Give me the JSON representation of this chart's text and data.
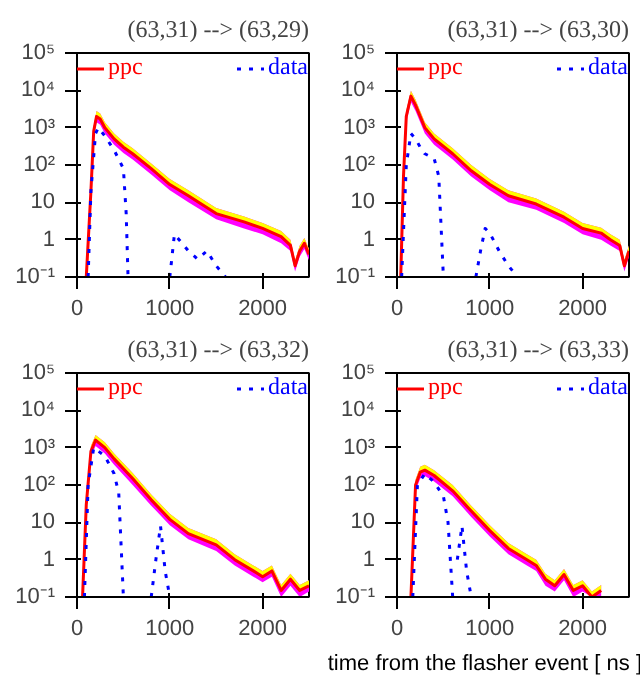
{
  "chart_data": [
    {
      "type": "line",
      "title": "(63,31) --> (63,29)",
      "xlim": [
        0,
        2500
      ],
      "ylim": [
        0.1,
        100000
      ],
      "log": "y",
      "legend": "top",
      "grid": false,
      "xticks": [
        0,
        1000,
        2000
      ],
      "yticks": [
        {
          "value": 0.1,
          "label": "10⁻¹"
        },
        1,
        10,
        {
          "value": 100,
          "label": "10²"
        },
        {
          "value": 1000,
          "label": "10³"
        },
        {
          "value": 10000,
          "label": "10⁴"
        },
        {
          "value": 100000,
          "label": "10⁵"
        }
      ],
      "series": [
        {
          "name": "ppc",
          "color": "#ff0000",
          "line_style": "solid",
          "x": [
            100,
            150,
            180,
            210,
            250,
            300,
            400,
            500,
            600,
            800,
            1000,
            1200,
            1500,
            1800,
            2000,
            2200,
            2300,
            2350,
            2400,
            2450,
            2500
          ],
          "values": [
            0.1,
            20,
            800,
            2000,
            1700,
            1000,
            500,
            300,
            200,
            80,
            30,
            15,
            5,
            3,
            2,
            1.2,
            0.7,
            0.2,
            0.5,
            0.8,
            0.4
          ],
          "lower": [
            0.1,
            14,
            560,
            1400,
            1200,
            700,
            350,
            210,
            140,
            56,
            21,
            10,
            3.5,
            2,
            1.4,
            0.8,
            0.5,
            0.14,
            0.35,
            0.56,
            0.28
          ],
          "upper": [
            0.14,
            28,
            1100,
            2800,
            2400,
            1400,
            700,
            420,
            280,
            110,
            42,
            21,
            7,
            4.2,
            2.8,
            1.7,
            1,
            0.28,
            0.7,
            1.1,
            0.56
          ]
        },
        {
          "name": "data",
          "color": "#0000ff",
          "line_style": "dotted",
          "x": [
            120,
            150,
            200,
            230,
            300,
            400,
            500,
            530,
            550,
            null,
            1000,
            1050,
            1100,
            1200,
            1300,
            1400,
            1500,
            1600
          ],
          "values": [
            0.1,
            20,
            700,
            1000,
            600,
            250,
            80,
            5,
            0.1,
            null,
            0.1,
            1.4,
            1,
            0.5,
            0.3,
            0.5,
            0.2,
            0.1
          ]
        }
      ]
    },
    {
      "type": "line",
      "title": "(63,31) --> (63,30)",
      "xlim": [
        0,
        2500
      ],
      "ylim": [
        0.1,
        100000
      ],
      "log": "y",
      "legend": "top",
      "grid": false,
      "xticks": [
        0,
        1000,
        2000
      ],
      "yticks": [
        {
          "value": 0.1,
          "label": "10⁻¹"
        },
        1,
        10,
        {
          "value": 100,
          "label": "10²"
        },
        {
          "value": 1000,
          "label": "10³"
        },
        {
          "value": 10000,
          "label": "10⁴"
        },
        {
          "value": 100000,
          "label": "10⁵"
        }
      ],
      "series": [
        {
          "name": "ppc",
          "color": "#ff0000",
          "line_style": "solid",
          "x": [
            40,
            70,
            100,
            150,
            200,
            300,
            400,
            600,
            800,
            1000,
            1200,
            1500,
            1800,
            2000,
            2200,
            2300,
            2400,
            2450,
            2500
          ],
          "values": [
            0.1,
            50,
            2000,
            7000,
            4000,
            1000,
            500,
            200,
            70,
            30,
            15,
            9,
            4,
            2,
            1.5,
            1,
            0.7,
            0.2,
            0.5
          ],
          "lower": [
            0.1,
            35,
            1400,
            4900,
            2800,
            700,
            350,
            140,
            49,
            21,
            10,
            6.3,
            2.8,
            1.4,
            1,
            0.7,
            0.5,
            0.14,
            0.35
          ],
          "upper": [
            0.14,
            70,
            2800,
            9800,
            5600,
            1400,
            700,
            280,
            100,
            42,
            21,
            12.6,
            5.6,
            2.8,
            2.1,
            1.4,
            1,
            0.28,
            0.7
          ]
        },
        {
          "name": "data",
          "color": "#0000ff",
          "line_style": "dotted",
          "x": [
            50,
            100,
            150,
            200,
            250,
            300,
            400,
            450,
            500,
            null,
            850,
            900,
            950,
            1000,
            1100,
            1200,
            1300
          ],
          "values": [
            0.1,
            100,
            700,
            500,
            300,
            200,
            150,
            50,
            0.1,
            null,
            0.1,
            0.5,
            2,
            1.5,
            0.5,
            0.2,
            0.1
          ]
        }
      ]
    },
    {
      "type": "line",
      "title": "(63,31) --> (63,32)",
      "xlim": [
        0,
        2500
      ],
      "ylim": [
        0.1,
        100000
      ],
      "log": "y",
      "legend": "top",
      "grid": false,
      "xticks": [
        0,
        1000,
        2000
      ],
      "yticks": [
        {
          "value": 0.1,
          "label": "10⁻¹"
        },
        1,
        10,
        {
          "value": 100,
          "label": "10²"
        },
        {
          "value": 1000,
          "label": "10³"
        },
        {
          "value": 10000,
          "label": "10⁴"
        },
        {
          "value": 100000,
          "label": "10⁵"
        }
      ],
      "series": [
        {
          "name": "ppc",
          "color": "#ff0000",
          "line_style": "solid",
          "x": [
            60,
            100,
            150,
            200,
            300,
            400,
            600,
            800,
            1000,
            1200,
            1500,
            1700,
            1900,
            2000,
            2100,
            2200,
            2300,
            2400,
            2500
          ],
          "values": [
            0.1,
            30,
            800,
            1600,
            1000,
            500,
            150,
            40,
            12,
            5,
            2.5,
            1,
            0.5,
            0.35,
            0.5,
            0.15,
            0.3,
            0.15,
            0.2
          ],
          "lower": [
            0.1,
            21,
            560,
            1100,
            700,
            350,
            100,
            28,
            8.4,
            3.5,
            1.7,
            0.7,
            0.35,
            0.25,
            0.35,
            0.1,
            0.2,
            0.1,
            0.14
          ],
          "upper": [
            0.14,
            42,
            1100,
            2200,
            1400,
            700,
            210,
            56,
            17,
            7,
            3.5,
            1.4,
            0.7,
            0.5,
            0.7,
            0.21,
            0.42,
            0.21,
            0.28
          ]
        },
        {
          "name": "data",
          "color": "#0000ff",
          "line_style": "dotted",
          "x": [
            80,
            120,
            180,
            300,
            400,
            450,
            500,
            null,
            800,
            850,
            900,
            950,
            1000
          ],
          "values": [
            0.1,
            100,
            1000,
            600,
            200,
            60,
            0.1,
            null,
            0.1,
            1,
            8,
            0.5,
            0.1
          ]
        }
      ]
    },
    {
      "type": "line",
      "title": "(63,31) --> (63,33)",
      "xlabel": "time from the flasher event [ ns ]",
      "xlim": [
        0,
        2500
      ],
      "ylim": [
        0.1,
        100000
      ],
      "log": "y",
      "legend": "top",
      "grid": false,
      "xticks": [
        0,
        1000,
        2000
      ],
      "yticks": [
        {
          "value": 0.1,
          "label": "10⁻¹"
        },
        1,
        10,
        {
          "value": 100,
          "label": "10²"
        },
        {
          "value": 1000,
          "label": "10³"
        },
        {
          "value": 10000,
          "label": "10⁴"
        },
        {
          "value": 100000,
          "label": "10⁵"
        }
      ],
      "series": [
        {
          "name": "ppc",
          "color": "#ff0000",
          "line_style": "solid",
          "x": [
            150,
            200,
            250,
            300,
            400,
            600,
            800,
            1000,
            1200,
            1400,
            1500,
            1600,
            1700,
            1800,
            1900,
            2000,
            2100,
            2200
          ],
          "values": [
            0.1,
            100,
            220,
            250,
            180,
            70,
            20,
            6,
            2,
            1,
            0.7,
            0.3,
            0.2,
            0.4,
            0.15,
            0.2,
            0.1,
            0.15
          ],
          "lower": [
            0.1,
            70,
            150,
            175,
            125,
            50,
            14,
            4.2,
            1.4,
            0.7,
            0.5,
            0.2,
            0.14,
            0.28,
            0.1,
            0.14,
            0.1,
            0.1
          ],
          "upper": [
            0.14,
            140,
            310,
            350,
            250,
            100,
            28,
            8.4,
            2.8,
            1.4,
            1,
            0.42,
            0.28,
            0.56,
            0.21,
            0.28,
            0.14,
            0.21
          ]
        },
        {
          "name": "data",
          "color": "#0000ff",
          "line_style": "dotted",
          "x": [
            170,
            220,
            300,
            400,
            500,
            550,
            600,
            null,
            650,
            700,
            750,
            800
          ],
          "values": [
            0.1,
            100,
            200,
            120,
            50,
            10,
            0.1,
            null,
            1,
            8,
            0.5,
            0.1
          ]
        }
      ]
    }
  ]
}
